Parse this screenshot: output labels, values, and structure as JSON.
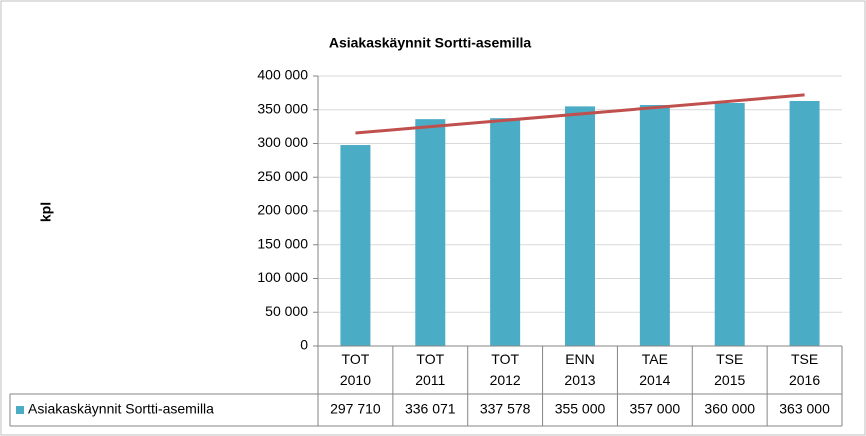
{
  "chart_data": {
    "type": "bar",
    "title": "Asiakaskäynnit Sortti-asemilla",
    "y_label": "kpl",
    "categories": [
      "TOT 2010",
      "TOT 2011",
      "TOT 2012",
      "ENN 2013",
      "TAE 2014",
      "TSE 2015",
      "TSE 2016"
    ],
    "series": [
      {
        "name": "Asiakaskäynnit Sortti-asemilla",
        "color": "#4bacc6",
        "values": [
          297710,
          336071,
          337578,
          355000,
          357000,
          360000,
          363000
        ],
        "value_labels": [
          "297 710",
          "336 071",
          "337 578",
          "355 000",
          "357 000",
          "360 000",
          "363 000"
        ]
      }
    ],
    "trendline": {
      "type": "linear",
      "color": "#c0504d"
    },
    "ylim": [
      0,
      400000
    ],
    "yticks": [
      0,
      {
        "value": 50000,
        "label": "50 000"
      },
      {
        "value": 100000,
        "label": "100 000"
      },
      {
        "value": 150000,
        "label": "150 000"
      },
      {
        "value": 200000,
        "label": "200 000"
      },
      {
        "value": 250000,
        "label": "250 000"
      },
      {
        "value": 300000,
        "label": "300 000"
      },
      {
        "value": 350000,
        "label": "350 000"
      },
      {
        "value": 400000,
        "label": "400 000"
      }
    ],
    "grid": true,
    "data_table": true
  }
}
